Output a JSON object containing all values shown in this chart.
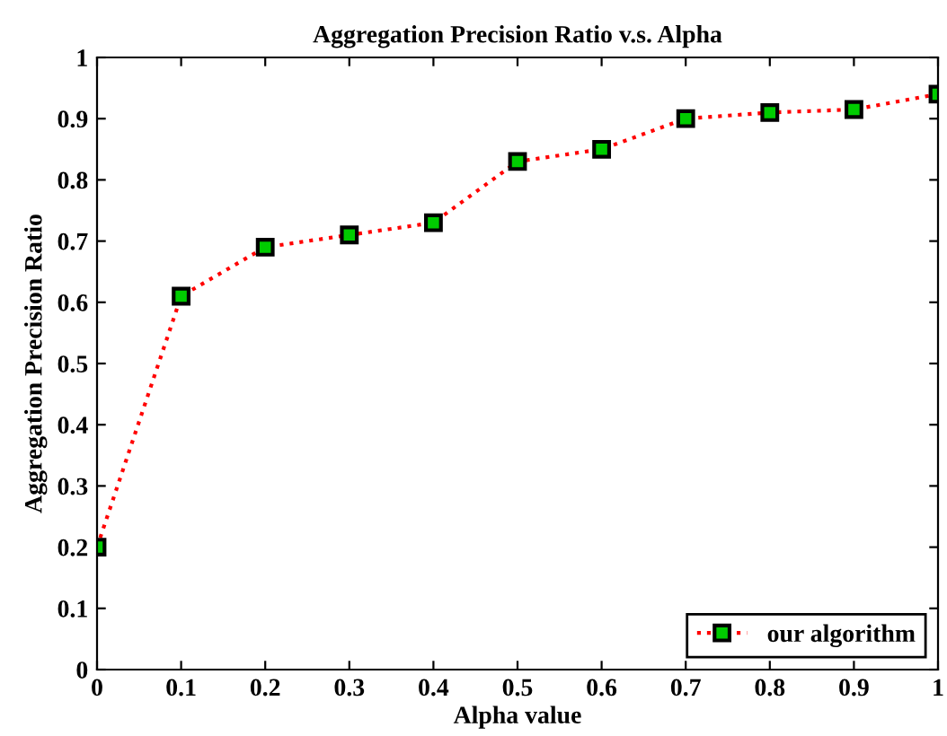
{
  "chart_data": {
    "type": "line",
    "title": "Aggregation Precision Ratio v.s. Alpha",
    "xlabel": "Alpha value",
    "ylabel": "Aggregation Precision Ratio",
    "x": [
      0,
      0.1,
      0.2,
      0.3,
      0.4,
      0.5,
      0.6,
      0.7,
      0.8,
      0.9,
      1
    ],
    "series": [
      {
        "name": "our algorithm",
        "color": "#ff0000",
        "values": [
          0.2,
          0.61,
          0.69,
          0.71,
          0.73,
          0.83,
          0.85,
          0.9,
          0.91,
          0.915,
          0.94
        ]
      }
    ],
    "xlim": [
      0,
      1
    ],
    "ylim": [
      0,
      1
    ],
    "xticks": [
      0,
      0.1,
      0.2,
      0.3,
      0.4,
      0.5,
      0.6,
      0.7,
      0.8,
      0.9,
      1
    ],
    "yticks": [
      0,
      0.1,
      0.2,
      0.3,
      0.4,
      0.5,
      0.6,
      0.7,
      0.8,
      0.9,
      1
    ],
    "grid": false,
    "legend": "bottom right",
    "marker": "square",
    "line_style": "dotted"
  }
}
